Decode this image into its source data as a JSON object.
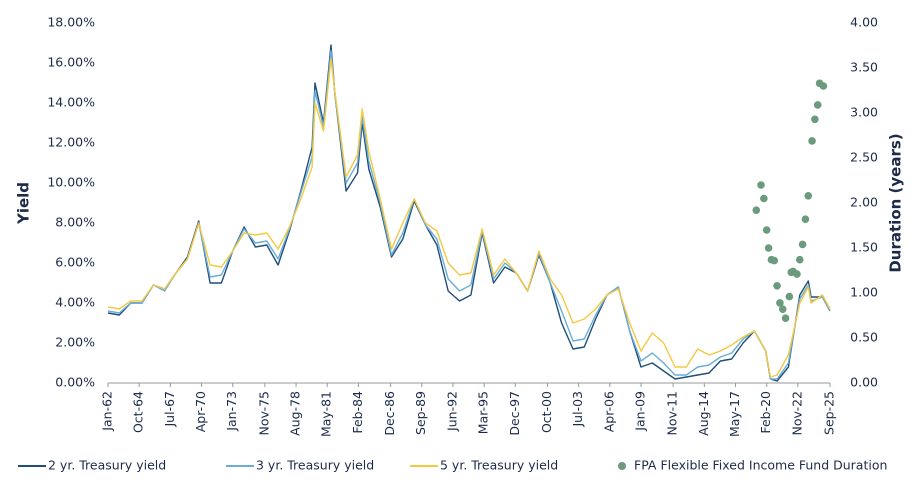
{
  "chart_data": {
    "type": "line",
    "x": [
      "1962-01",
      "1963-01",
      "1964-01",
      "1965-01",
      "1966-01",
      "1967-01",
      "1968-01",
      "1969-01",
      "1970-01",
      "1971-01",
      "1972-01",
      "1973-01",
      "1974-01",
      "1975-01",
      "1976-01",
      "1977-01",
      "1978-01",
      "1979-01",
      "1980-01",
      "1980-04",
      "1981-01",
      "1981-09",
      "1982-01",
      "1983-01",
      "1984-01",
      "1984-06",
      "1985-01",
      "1986-01",
      "1987-01",
      "1988-01",
      "1989-01",
      "1990-01",
      "1991-01",
      "1992-01",
      "1993-01",
      "1994-01",
      "1995-01",
      "1996-01",
      "1997-01",
      "1998-01",
      "1999-01",
      "2000-01",
      "2001-01",
      "2002-01",
      "2003-01",
      "2004-01",
      "2005-01",
      "2006-01",
      "2007-01",
      "2008-01",
      "2009-01",
      "2010-01",
      "2011-01",
      "2012-01",
      "2013-01",
      "2014-01",
      "2015-01",
      "2016-01",
      "2017-01",
      "2018-01",
      "2019-01",
      "2020-01",
      "2020-06",
      "2021-01",
      "2022-01",
      "2023-01",
      "2023-10",
      "2024-01",
      "2025-01",
      "2025-09"
    ],
    "series": [
      {
        "name": "2 yr. Treasury yield",
        "color": "#1f4e79",
        "values": [
          3.5,
          3.4,
          4.0,
          4.0,
          4.9,
          4.7,
          5.5,
          6.3,
          8.1,
          5.0,
          5.0,
          6.6,
          7.8,
          6.8,
          6.9,
          5.9,
          7.6,
          9.6,
          11.8,
          15.0,
          13.0,
          16.9,
          14.5,
          9.6,
          10.5,
          13.0,
          10.7,
          8.8,
          6.3,
          7.2,
          9.1,
          7.9,
          6.9,
          4.6,
          4.1,
          4.4,
          7.5,
          5.0,
          5.8,
          5.5,
          4.6,
          6.4,
          5.0,
          3.0,
          1.7,
          1.8,
          3.2,
          4.4,
          4.8,
          2.6,
          0.8,
          1.0,
          0.6,
          0.2,
          0.3,
          0.4,
          0.5,
          1.1,
          1.2,
          2.0,
          2.6,
          1.6,
          0.2,
          0.1,
          0.8,
          4.4,
          5.1,
          4.3,
          4.3,
          3.6
        ]
      },
      {
        "name": "3 yr. Treasury yield",
        "color": "#6aaed6",
        "values": [
          3.6,
          3.5,
          4.0,
          4.0,
          4.9,
          4.6,
          5.5,
          6.2,
          8.0,
          5.3,
          5.4,
          6.6,
          7.7,
          7.0,
          7.1,
          6.2,
          7.7,
          9.5,
          11.3,
          14.6,
          12.8,
          16.6,
          14.5,
          10.0,
          11.0,
          13.3,
          11.1,
          9.0,
          6.4,
          7.5,
          9.2,
          7.9,
          7.2,
          5.2,
          4.6,
          4.9,
          7.6,
          5.2,
          6.0,
          5.5,
          4.6,
          6.5,
          5.0,
          3.6,
          2.1,
          2.2,
          3.4,
          4.4,
          4.8,
          2.6,
          1.1,
          1.5,
          1.0,
          0.4,
          0.4,
          0.8,
          0.9,
          1.3,
          1.5,
          2.2,
          2.6,
          1.6,
          0.2,
          0.2,
          1.0,
          4.2,
          4.9,
          4.1,
          4.3,
          3.6
        ]
      },
      {
        "name": "5 yr. Treasury yield",
        "color": "#f5c842",
        "values": [
          3.8,
          3.7,
          4.1,
          4.1,
          4.9,
          4.7,
          5.5,
          6.2,
          8.0,
          5.9,
          5.8,
          6.6,
          7.5,
          7.4,
          7.5,
          6.7,
          7.8,
          9.2,
          10.8,
          14.0,
          12.6,
          16.2,
          14.6,
          10.3,
          11.4,
          13.7,
          11.6,
          9.2,
          6.7,
          8.0,
          9.2,
          8.0,
          7.6,
          6.0,
          5.4,
          5.5,
          7.7,
          5.4,
          6.2,
          5.5,
          4.6,
          6.6,
          5.2,
          4.4,
          3.0,
          3.2,
          3.7,
          4.4,
          4.7,
          3.0,
          1.6,
          2.5,
          2.0,
          0.8,
          0.8,
          1.7,
          1.4,
          1.6,
          1.9,
          2.3,
          2.6,
          1.6,
          0.3,
          0.4,
          1.4,
          4.0,
          4.8,
          4.0,
          4.4,
          3.7
        ]
      },
      {
        "name": "FPA Flexible Fixed Income Fund Duration",
        "color": "#6b9a7d",
        "mode": "markers",
        "axis": "y2",
        "x": [
          "2019-03",
          "2019-08",
          "2019-11",
          "2020-02",
          "2020-04",
          "2020-07",
          "2020-10",
          "2021-01",
          "2021-04",
          "2021-07",
          "2021-10",
          "2022-02",
          "2022-04",
          "2022-06",
          "2022-10",
          "2023-01",
          "2023-04",
          "2023-07",
          "2023-10",
          "2024-02",
          "2024-05",
          "2024-08",
          "2024-10",
          "2025-02"
        ],
        "values": [
          1.92,
          2.2,
          2.05,
          1.7,
          1.5,
          1.37,
          1.36,
          1.08,
          0.89,
          0.82,
          0.72,
          0.96,
          1.23,
          1.24,
          1.21,
          1.37,
          1.54,
          1.82,
          2.08,
          2.69,
          2.93,
          3.09,
          3.33,
          3.3
        ]
      }
    ],
    "xlim": [
      "1962-01",
      "2025-09"
    ],
    "xticks": [
      {
        "value": "1962-01",
        "label": "Jan-62"
      },
      {
        "value": "1964-10",
        "label": "Oct-64"
      },
      {
        "value": "1967-07",
        "label": "Jul-67"
      },
      {
        "value": "1970-04",
        "label": "Apr-70"
      },
      {
        "value": "1973-01",
        "label": "Jan-73"
      },
      {
        "value": "1975-11",
        "label": "Nov-75"
      },
      {
        "value": "1978-08",
        "label": "Aug-78"
      },
      {
        "value": "1981-05",
        "label": "May-81"
      },
      {
        "value": "1984-02",
        "label": "Feb-84"
      },
      {
        "value": "1986-12",
        "label": "Dec-86"
      },
      {
        "value": "1989-09",
        "label": "Sep-89"
      },
      {
        "value": "1992-06",
        "label": "Jun-92"
      },
      {
        "value": "1995-03",
        "label": "Mar-95"
      },
      {
        "value": "1997-12",
        "label": "Dec-97"
      },
      {
        "value": "2000-10",
        "label": "Oct-00"
      },
      {
        "value": "2003-07",
        "label": "Jul-03"
      },
      {
        "value": "2006-04",
        "label": "Apr-06"
      },
      {
        "value": "2009-01",
        "label": "Jan-09"
      },
      {
        "value": "2011-11",
        "label": "Nov-11"
      },
      {
        "value": "2014-08",
        "label": "Aug-14"
      },
      {
        "value": "2017-05",
        "label": "May-17"
      },
      {
        "value": "2020-02",
        "label": "Feb-20"
      },
      {
        "value": "2022-11",
        "label": "Nov-22"
      },
      {
        "value": "2025-09",
        "label": "Sep-25"
      }
    ],
    "ylim": [
      0,
      18
    ],
    "yticks": [
      {
        "value": 0,
        "label": "0.00%"
      },
      {
        "value": 2,
        "label": "2.00%"
      },
      {
        "value": 4,
        "label": "4.00%"
      },
      {
        "value": 6,
        "label": "6.00%"
      },
      {
        "value": 8,
        "label": "8.00%"
      },
      {
        "value": 10,
        "label": "10.00%"
      },
      {
        "value": 12,
        "label": "12.00%"
      },
      {
        "value": 14,
        "label": "14.00%"
      },
      {
        "value": 16,
        "label": "16.00%"
      },
      {
        "value": 18,
        "label": "18.00%"
      }
    ],
    "y2lim": [
      0,
      4
    ],
    "y2ticks": [
      {
        "value": 0,
        "label": "0.00"
      },
      {
        "value": 0.5,
        "label": "0.50"
      },
      {
        "value": 1,
        "label": "1.00"
      },
      {
        "value": 1.5,
        "label": "1.50"
      },
      {
        "value": 2,
        "label": "2.00"
      },
      {
        "value": 2.5,
        "label": "2.50"
      },
      {
        "value": 3,
        "label": "3.00"
      },
      {
        "value": 3.5,
        "label": "3.50"
      },
      {
        "value": 4,
        "label": "4.00"
      }
    ],
    "ylabel": "Yield",
    "y2label": "Duration (years)",
    "legend": "bottom"
  }
}
